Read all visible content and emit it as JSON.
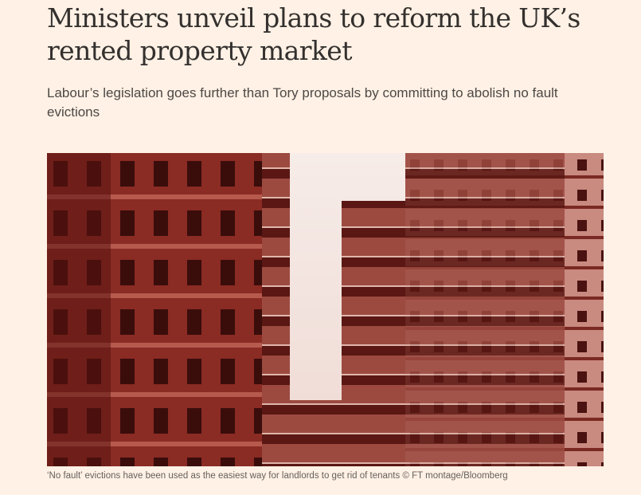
{
  "article": {
    "headline": "Ministers unveil plans to reform the UK’s rented property market",
    "standfirst": "Labour’s legislation goes further than Tory proposals by committing to abolish no fault evictions",
    "image": {
      "alt": "Tower blocks of flats with balconies, tinted red",
      "caption": "‘No fault’ evictions have been used as the easiest way for landlords to get rid of tenants © FT montage/Bloomberg"
    }
  },
  "colors": {
    "background": "#fff1e5",
    "text": "#33302e",
    "tint": "#7a1f1a"
  }
}
